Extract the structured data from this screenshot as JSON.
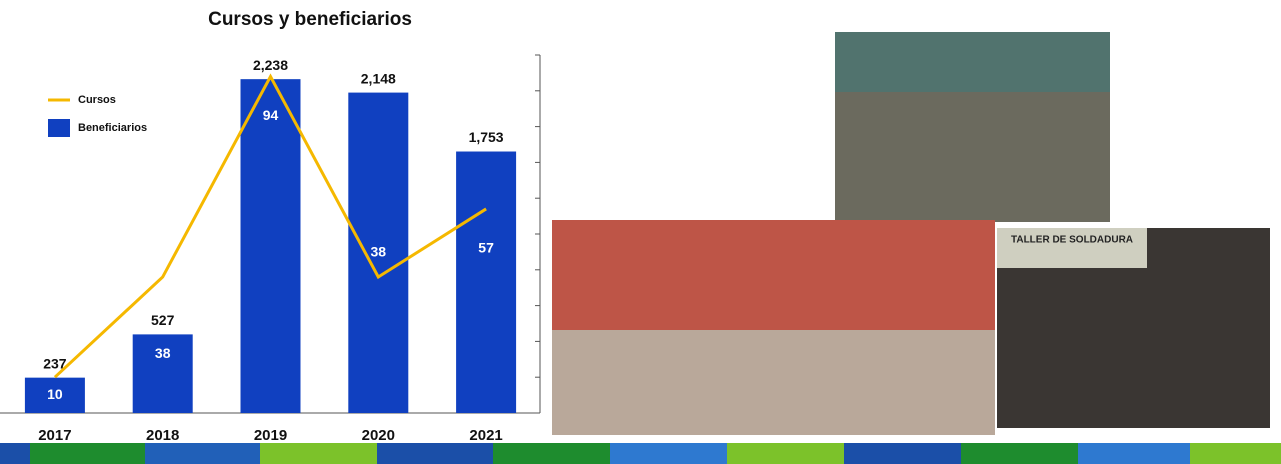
{
  "chart_data": {
    "type": "bar_line",
    "title": "Cursos  y beneficiarios",
    "categories": [
      "2017",
      "2018",
      "2019",
      "2020",
      "2021"
    ],
    "series": [
      {
        "name": "Beneficiarios",
        "type": "bar",
        "color": "#1040c0",
        "values": [
          237,
          527,
          2238,
          2148,
          1753
        ],
        "value_labels": [
          "237",
          "527",
          "2,238",
          "2,148",
          "1,753"
        ]
      },
      {
        "name": "Cursos",
        "type": "line",
        "axis": "y2",
        "color": "#f5b800",
        "values": [
          10,
          38,
          94,
          38,
          57
        ]
      }
    ],
    "ylim": [
      0,
      2400
    ],
    "y2lim": [
      0,
      100
    ],
    "y2ticks": [
      0,
      10,
      20,
      30,
      40,
      50,
      60,
      70,
      80,
      90,
      100
    ],
    "legend": "upper left"
  },
  "photo_text": "TALLER DE SOLDADURA"
}
